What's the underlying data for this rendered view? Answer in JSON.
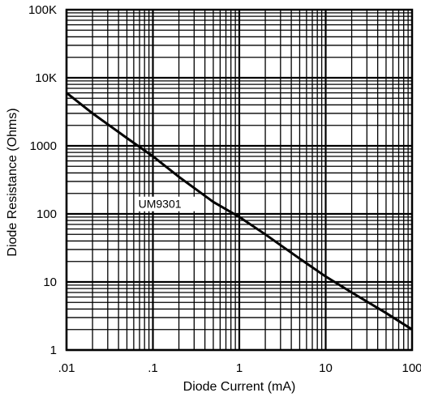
{
  "chart_data": {
    "type": "line",
    "title": "",
    "xlabel": "Diode Current (mA)",
    "ylabel": "Diode Resistance (Ohms)",
    "x_scale": "log",
    "y_scale": "log",
    "xlim": [
      0.01,
      100
    ],
    "ylim": [
      1,
      100000
    ],
    "x_ticks": [
      ".01",
      ".1",
      "1",
      "10",
      "100"
    ],
    "y_ticks": [
      "1",
      "10",
      "100",
      "1000",
      "10K",
      "100K"
    ],
    "grid": true,
    "legend": "none",
    "series": [
      {
        "name": "UM9301",
        "x": [
          0.01,
          0.02,
          0.05,
          0.1,
          0.2,
          0.5,
          1,
          2,
          5,
          10,
          20,
          50,
          100
        ],
        "y": [
          6000,
          3000,
          1300,
          700,
          350,
          150,
          90,
          50,
          22,
          12,
          7,
          3.5,
          2
        ]
      }
    ],
    "annotations": [
      {
        "text": "UM9301",
        "x": 0.09,
        "y": 140
      }
    ]
  }
}
